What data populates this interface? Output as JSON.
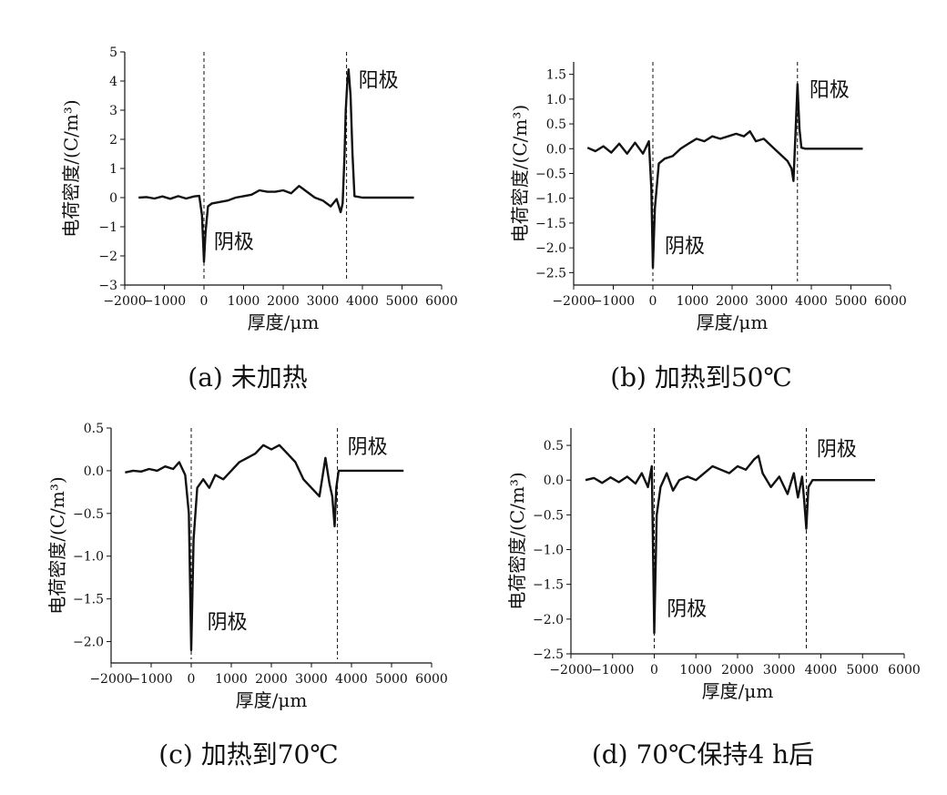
{
  "chart_data": [
    {
      "type": "line",
      "caption": "(a) 未加热",
      "xlabel": "厚度/μm",
      "ylabel": "电荷密度/(C/m³)",
      "xlim": [
        -2000,
        6000
      ],
      "ylim": [
        -3,
        5
      ],
      "xticks": [
        -2000,
        -1000,
        0,
        1000,
        2000,
        3000,
        4000,
        5000,
        6000
      ],
      "yticks": [
        -3,
        -2,
        -1,
        0,
        1,
        2,
        3,
        4,
        5
      ],
      "electrodes": [
        0,
        3600
      ],
      "annotations": [
        {
          "text": "阴极",
          "x": 250,
          "y": -1.75
        },
        {
          "text": "阳极",
          "x": 3900,
          "y": 3.8
        }
      ],
      "series": [
        {
          "x": [
            -1650,
            -1450,
            -1250,
            -1050,
            -850,
            -650,
            -450,
            -250,
            -120,
            -50,
            0,
            40,
            100,
            200,
            400,
            600,
            800,
            1000,
            1200,
            1400,
            1600,
            1800,
            2000,
            2200,
            2400,
            2500,
            2600,
            2800,
            3000,
            3200,
            3350,
            3450,
            3500,
            3550,
            3580,
            3620,
            3650,
            3700,
            3750,
            3800,
            4000,
            4500,
            5000,
            5300
          ],
          "y": [
            0.0,
            0.02,
            -0.03,
            0.04,
            -0.04,
            0.05,
            -0.03,
            0.04,
            0.06,
            -0.6,
            -2.2,
            -1.2,
            -0.3,
            -0.2,
            -0.15,
            -0.1,
            0.0,
            0.05,
            0.1,
            0.25,
            0.2,
            0.2,
            0.25,
            0.15,
            0.4,
            0.3,
            0.2,
            0.0,
            -0.1,
            -0.3,
            -0.05,
            -0.5,
            -0.2,
            1.5,
            3.0,
            4.0,
            4.4,
            3.5,
            1.5,
            0.05,
            0.0,
            0.0,
            0.0,
            0.0
          ]
        }
      ]
    },
    {
      "type": "line",
      "caption": "(b) 加热到50℃",
      "xlabel": "厚度/μm",
      "ylabel": "电荷密度/(C/m³)",
      "xlim": [
        -2000,
        6000
      ],
      "ylim": [
        -2.75,
        1.75
      ],
      "xticks": [
        -2000,
        -1000,
        0,
        1000,
        2000,
        3000,
        4000,
        5000,
        6000
      ],
      "yticks": [
        -2.5,
        -2.0,
        -1.5,
        -1.0,
        -0.5,
        0.0,
        0.5,
        1.0,
        1.5
      ],
      "electrodes": [
        0,
        3650
      ],
      "annotations": [
        {
          "text": "阴极",
          "x": 300,
          "y": -2.1
        },
        {
          "text": "阳极",
          "x": 3950,
          "y": 1.05
        }
      ],
      "series": [
        {
          "x": [
            -1650,
            -1450,
            -1250,
            -1050,
            -850,
            -650,
            -450,
            -250,
            -100,
            -40,
            0,
            50,
            150,
            300,
            500,
            700,
            900,
            1100,
            1300,
            1500,
            1700,
            1900,
            2100,
            2300,
            2450,
            2600,
            2800,
            3000,
            3200,
            3400,
            3500,
            3550,
            3600,
            3650,
            3700,
            3750,
            3850,
            4200,
            4800,
            5300
          ],
          "y": [
            0.02,
            -0.05,
            0.05,
            -0.08,
            0.1,
            -0.1,
            0.12,
            -0.1,
            0.15,
            -0.8,
            -2.4,
            -1.2,
            -0.3,
            -0.2,
            -0.15,
            0.0,
            0.1,
            0.2,
            0.15,
            0.25,
            0.2,
            0.25,
            0.3,
            0.25,
            0.35,
            0.15,
            0.2,
            0.05,
            -0.1,
            -0.25,
            -0.4,
            -0.65,
            0.3,
            1.3,
            0.4,
            0.02,
            0.0,
            0.0,
            0.0,
            0.0
          ]
        }
      ]
    },
    {
      "type": "line",
      "caption": "(c) 加热到70℃",
      "xlabel": "厚度/μm",
      "ylabel": "电荷密度/(C/m³)",
      "xlim": [
        -2000,
        6000
      ],
      "ylim": [
        -2.25,
        0.5
      ],
      "xticks": [
        -2000,
        -1000,
        0,
        1000,
        2000,
        3000,
        4000,
        5000,
        6000
      ],
      "yticks": [
        -2.0,
        -1.5,
        -1.0,
        -0.5,
        0.0,
        0.5
      ],
      "electrodes": [
        0,
        3650
      ],
      "annotations": [
        {
          "text": "阴极",
          "x": 400,
          "y": -1.85
        },
        {
          "text": "阴极",
          "x": 3900,
          "y": 0.2
        }
      ],
      "series": [
        {
          "x": [
            -1650,
            -1450,
            -1250,
            -1050,
            -850,
            -650,
            -450,
            -300,
            -150,
            -60,
            0,
            60,
            150,
            300,
            450,
            600,
            800,
            1000,
            1200,
            1400,
            1600,
            1800,
            2000,
            2200,
            2400,
            2600,
            2800,
            3000,
            3200,
            3350,
            3450,
            3520,
            3580,
            3620,
            3680,
            3750,
            3850,
            4300,
            4800,
            5300
          ],
          "y": [
            -0.02,
            0.0,
            -0.01,
            0.02,
            0.0,
            0.05,
            0.02,
            0.1,
            -0.05,
            -0.5,
            -2.1,
            -0.8,
            -0.2,
            -0.1,
            -0.2,
            -0.05,
            -0.1,
            0.0,
            0.1,
            0.15,
            0.2,
            0.3,
            0.25,
            0.3,
            0.2,
            0.1,
            -0.1,
            -0.2,
            -0.3,
            0.15,
            -0.15,
            -0.3,
            -0.65,
            -0.2,
            0.0,
            0.0,
            0.0,
            0.0,
            0.0,
            0.0
          ]
        }
      ]
    },
    {
      "type": "line",
      "caption": "(d) 70℃保持4 h后",
      "xlabel": "厚度/μm",
      "ylabel": "电荷密度/(C/m³)",
      "xlim": [
        -2000,
        6000
      ],
      "ylim": [
        -2.5,
        0.75
      ],
      "xticks": [
        -2000,
        -1000,
        0,
        1000,
        2000,
        3000,
        4000,
        5000,
        6000
      ],
      "yticks": [
        -2.5,
        -2.0,
        -1.5,
        -1.0,
        -0.5,
        0.0,
        0.5
      ],
      "electrodes": [
        0,
        3650
      ],
      "annotations": [
        {
          "text": "阴极",
          "x": 300,
          "y": -1.95
        },
        {
          "text": "阴极",
          "x": 3900,
          "y": 0.35
        }
      ],
      "series": [
        {
          "x": [
            -1650,
            -1450,
            -1250,
            -1050,
            -850,
            -650,
            -450,
            -300,
            -150,
            -60,
            0,
            60,
            150,
            300,
            450,
            600,
            800,
            1000,
            1200,
            1400,
            1600,
            1800,
            2000,
            2200,
            2400,
            2500,
            2600,
            2800,
            3000,
            3200,
            3350,
            3450,
            3550,
            3600,
            3650,
            3700,
            3800,
            4300,
            4800,
            5300
          ],
          "y": [
            0.0,
            0.03,
            -0.04,
            0.04,
            -0.03,
            0.05,
            -0.05,
            0.1,
            -0.1,
            0.2,
            -2.2,
            -0.5,
            -0.1,
            0.1,
            -0.15,
            0.0,
            0.05,
            0.0,
            0.1,
            0.2,
            0.15,
            0.1,
            0.2,
            0.15,
            0.3,
            0.35,
            0.1,
            -0.1,
            0.05,
            -0.2,
            0.1,
            -0.25,
            0.05,
            -0.3,
            -0.7,
            -0.1,
            0.0,
            0.0,
            0.0,
            0.0
          ]
        }
      ]
    }
  ]
}
